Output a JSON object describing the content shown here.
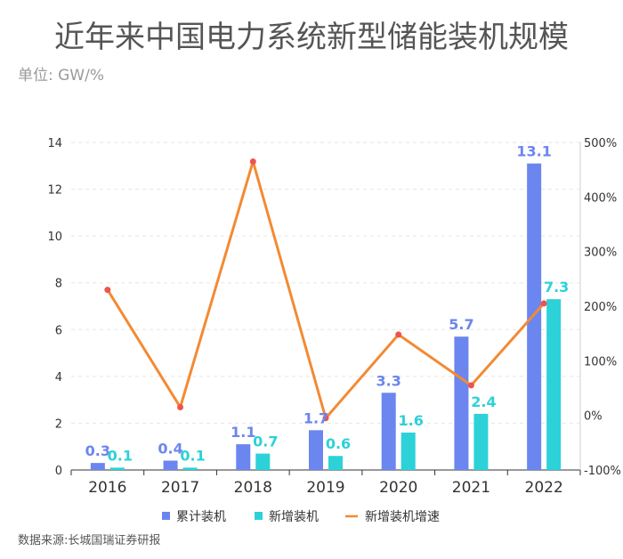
{
  "title": "近年来中国电力系统新型储能装机规模",
  "unit_label": "单位: GW/%",
  "source": "数据来源:长城国瑞证券研报",
  "colors": {
    "cumulative": "#6b86ee",
    "new": "#2dd1d8",
    "growth": "#f38a33",
    "growth_marker": "#ef5350"
  },
  "chart_data": {
    "type": "bar",
    "categories": [
      "2016",
      "2017",
      "2018",
      "2019",
      "2020",
      "2021",
      "2022"
    ],
    "series": [
      {
        "name": "累计装机",
        "type": "bar",
        "axis": "left",
        "values": [
          0.3,
          0.4,
          1.1,
          1.7,
          3.3,
          5.7,
          13.1
        ],
        "labels": [
          "0.3",
          "0.4",
          "1.1",
          "1.7",
          "3.3",
          "5.7",
          "13.1"
        ]
      },
      {
        "name": "新增装机",
        "type": "bar",
        "axis": "left",
        "values": [
          0.1,
          0.1,
          0.7,
          0.6,
          1.6,
          2.4,
          7.3
        ],
        "labels": [
          "0.1",
          "0.1",
          "0.7",
          "0.6",
          "1.6",
          "2.4",
          "7.3"
        ]
      },
      {
        "name": "新增装机增速",
        "type": "line",
        "axis": "right",
        "values": [
          230,
          15,
          465,
          -5,
          148,
          55,
          205
        ]
      }
    ],
    "ylim_left": [
      0,
      14
    ],
    "yticks_left": [
      "0",
      "2",
      "4",
      "6",
      "8",
      "10",
      "12",
      "14"
    ],
    "ylim_right": [
      -100,
      500
    ],
    "yticks_right": [
      "-100%",
      "0%",
      "100%",
      "200%",
      "300%",
      "400%",
      "500%"
    ],
    "grid": true,
    "legend_position": "bottom"
  }
}
